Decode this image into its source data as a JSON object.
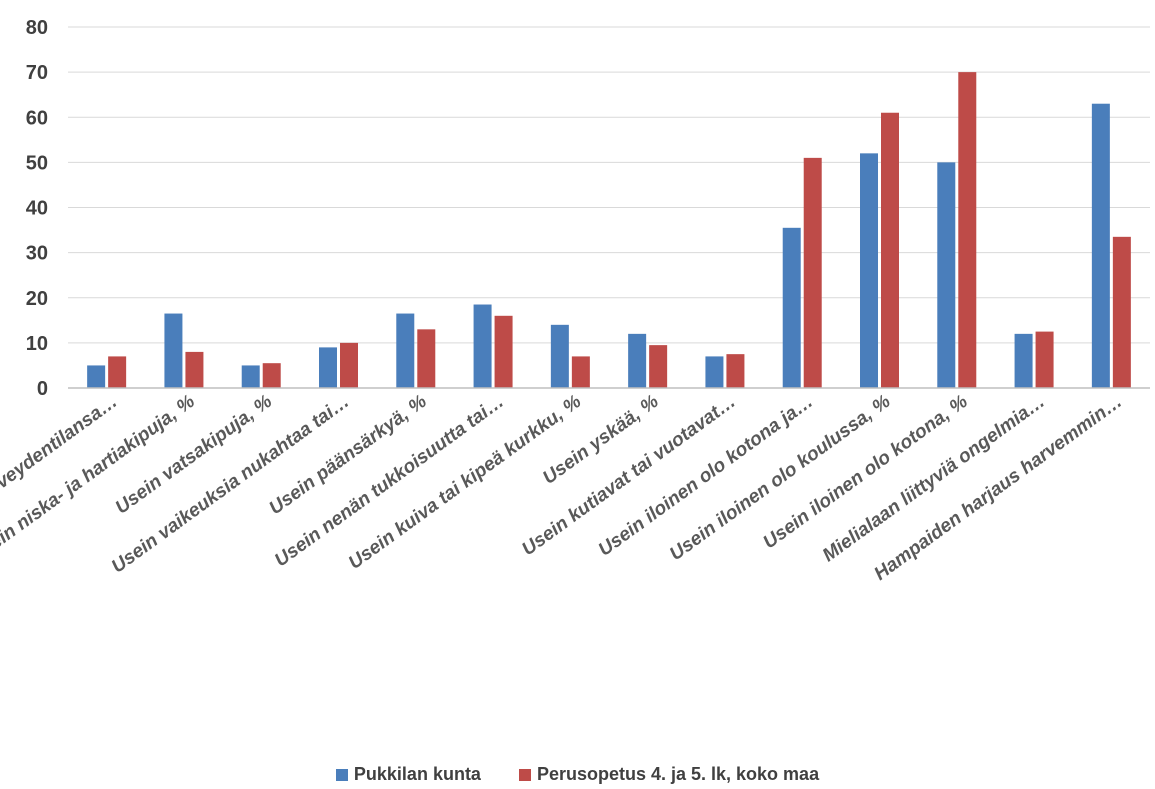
{
  "chart_data": {
    "type": "bar",
    "title": "",
    "xlabel": "",
    "ylabel": "",
    "ylim": [
      0,
      80
    ],
    "yticks": [
      "0",
      "10",
      "20",
      "30",
      "40",
      "50",
      "60",
      "70",
      "80"
    ],
    "grid": true,
    "legend_position": "bottom",
    "categories": [
      "Kokee terveydentilansa…",
      "Usein niska- ja hartiakipuja, %",
      "Usein vatsakipuja, %",
      "Usein vaikeuksia nukahtaa tai…",
      "Usein päänsärkyä, %",
      "Usein nenän tukkoisuutta tai…",
      "Usein kuiva tai kipeä kurkku, %",
      "Usein yskää, %",
      "Usein kutiavat tai vuotavat…",
      "Usein iloinen olo kotona ja…",
      "Usein iloinen olo koulussa, %",
      "Usein iloinen olo kotona, %",
      "Mielialaan liittyviä ongelmia…",
      "Hampaiden harjaus harvemmin…"
    ],
    "series": [
      {
        "name": "Pukkilan kunta",
        "color": "#4a7ebb",
        "values": [
          5,
          16.5,
          5,
          9,
          16.5,
          18.5,
          14,
          12,
          7,
          35.5,
          52,
          50,
          12,
          63
        ]
      },
      {
        "name": "Perusopetus 4. ja 5. lk, koko maa",
        "color": "#be4b48",
        "values": [
          7,
          8,
          5.5,
          10,
          13,
          16,
          7,
          9.5,
          7.5,
          51,
          61,
          70,
          12.5,
          33.5
        ]
      }
    ]
  }
}
